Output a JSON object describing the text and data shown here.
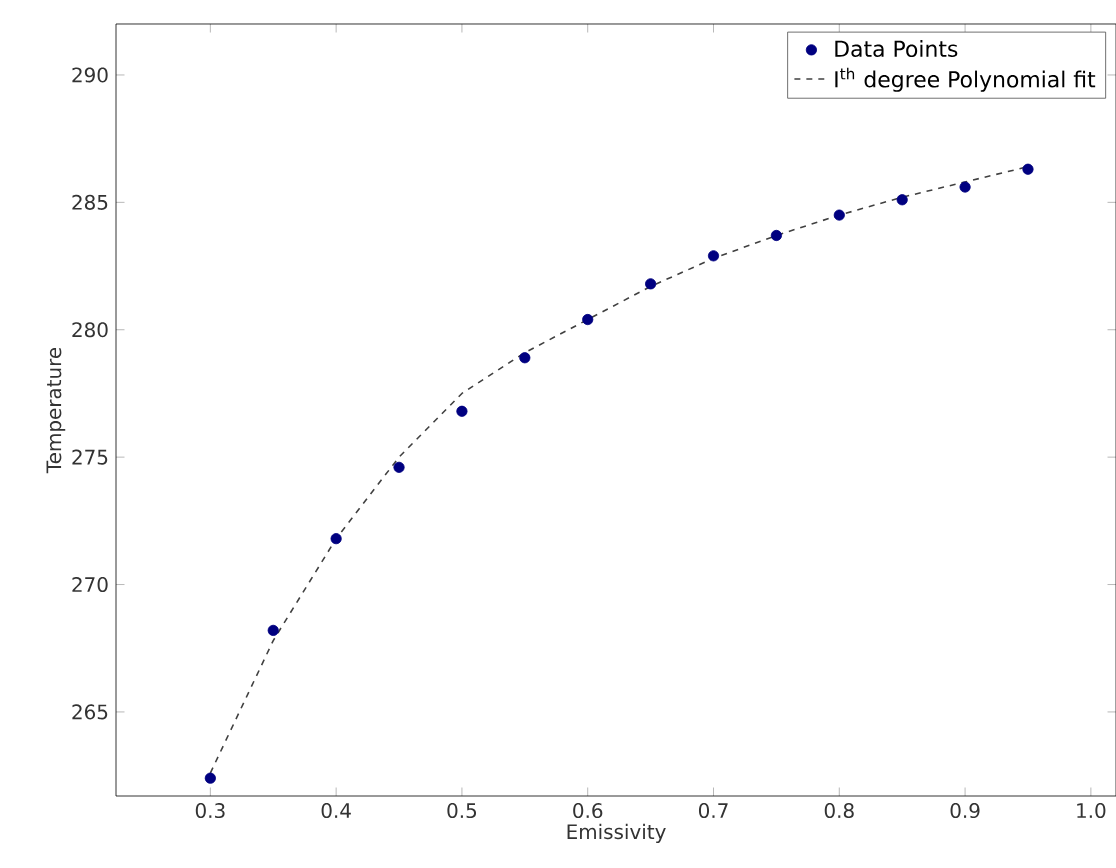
{
  "chart_data": {
    "type": "scatter",
    "xlabel": "Emissivity",
    "ylabel": "Temperature",
    "xlim": [
      0.225,
      1.02
    ],
    "ylim": [
      261.7,
      292
    ],
    "xticks": [
      {
        "value": 0.3,
        "label": "0.3"
      },
      {
        "value": 0.4,
        "label": "0.4"
      },
      {
        "value": 0.5,
        "label": "0.5"
      },
      {
        "value": 0.6,
        "label": "0.6"
      },
      {
        "value": 0.7,
        "label": "0.7"
      },
      {
        "value": 0.8,
        "label": "0.8"
      },
      {
        "value": 0.9,
        "label": "0.9"
      },
      {
        "value": 1.0,
        "label": "1.0"
      }
    ],
    "yticks": [
      265,
      270,
      275,
      280,
      285,
      290
    ],
    "legend": "top right",
    "grid": false,
    "series": [
      {
        "name": "Data Points",
        "color": "#000080",
        "marker": "circle",
        "x": [
          0.3,
          0.35,
          0.4,
          0.45,
          0.5,
          0.55,
          0.6,
          0.65,
          0.7,
          0.75,
          0.8,
          0.85,
          0.9,
          0.95
        ],
        "values": [
          262.4,
          268.2,
          271.8,
          274.6,
          276.8,
          278.9,
          280.4,
          281.8,
          282.9,
          283.7,
          284.5,
          285.1,
          285.6,
          286.3
        ]
      },
      {
        "name": "I$^{th}$ degree Polynomial fit",
        "type": "line",
        "color": "#404040",
        "line_style": "dashed",
        "marker": "none",
        "x": [
          0.3,
          0.35,
          0.4,
          0.45,
          0.5,
          0.55,
          0.6,
          0.65,
          0.7,
          0.75,
          0.8,
          0.85,
          0.9,
          0.95
        ],
        "values": [
          262.6,
          267.8,
          271.8,
          275.0,
          277.5,
          279.1,
          280.4,
          281.7,
          282.8,
          283.7,
          284.5,
          285.2,
          285.8,
          286.4
        ]
      }
    ]
  }
}
